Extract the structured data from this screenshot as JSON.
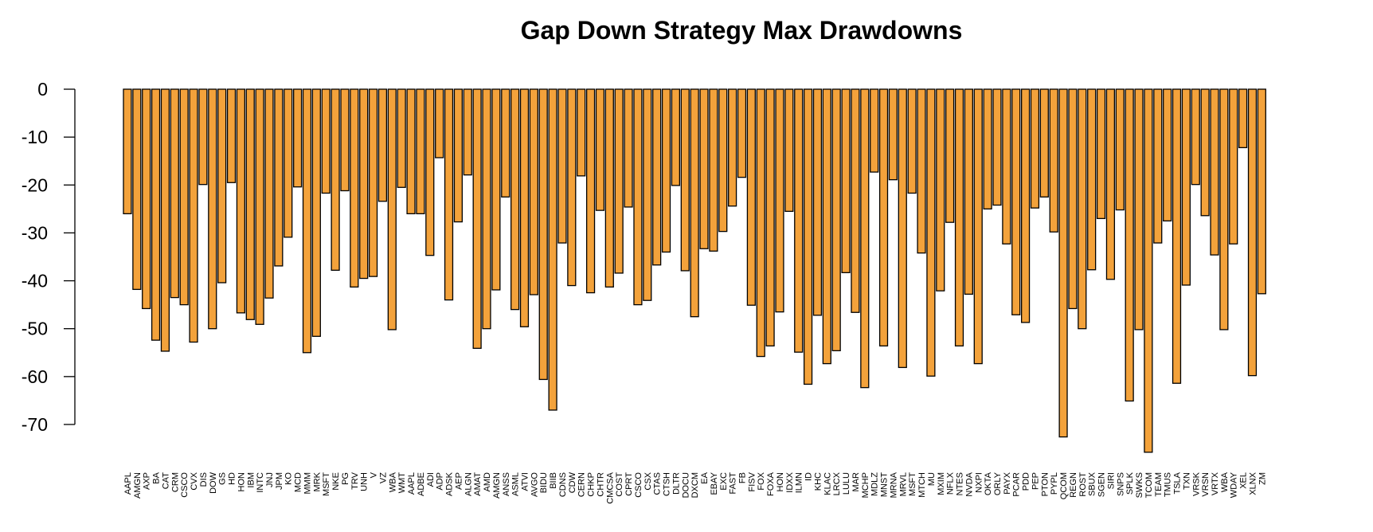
{
  "chart_data": {
    "type": "bar",
    "title": "Gap Down Strategy Max Drawdowns",
    "xlabel": "",
    "ylabel": "",
    "ylim": [
      -76,
      0
    ],
    "yticks": [
      0,
      -10,
      -20,
      -30,
      -40,
      -50,
      -60,
      -70
    ],
    "ytick_labels": [
      "0",
      "-10",
      "-20",
      "-30",
      "-40",
      "-50",
      "-60",
      "-70"
    ],
    "grid": false,
    "bar_color": "#f3a23b",
    "categories": [
      "AAPL",
      "AMGN",
      "AXP",
      "BA",
      "CAT",
      "CRM",
      "CSCO",
      "CVX",
      "DIS",
      "DOW",
      "GS",
      "HD",
      "HON",
      "IBM",
      "INTC",
      "JNJ",
      "JPM",
      "KO",
      "MCD",
      "MMM",
      "MRK",
      "MSFT",
      "NKE",
      "PG",
      "TRV",
      "UNH",
      "V",
      "VZ",
      "WBA",
      "WMT",
      "AAPL",
      "ADBE",
      "ADI",
      "ADP",
      "ADSK",
      "AEP",
      "ALGN",
      "AMAT",
      "AMD",
      "AMGN",
      "ANSS",
      "ASML",
      "ATVI",
      "AVGO",
      "BIDU",
      "BIIB",
      "CDNS",
      "CDW",
      "CERN",
      "CHKP",
      "CHTR",
      "CMCSA",
      "COST",
      "CPRT",
      "CSCO",
      "CSX",
      "CTAS",
      "CTSH",
      "DLTR",
      "DOCU",
      "DXCM",
      "EA",
      "EBAY",
      "EXC",
      "FAST",
      "FB",
      "FISV",
      "FOX",
      "FOXA",
      "HON",
      "IDXX",
      "ILMN",
      "ID",
      "KHC",
      "KLAC",
      "LRCX",
      "LULU",
      "MAR",
      "MCHP",
      "MDLZ",
      "MNST",
      "MRNA",
      "MRVL",
      "MSFT",
      "MTCH",
      "MU",
      "MXIM",
      "NFLX",
      "NTES",
      "NVDA",
      "NXPI",
      "OKTA",
      "ORLY",
      "PAYX",
      "PCAR",
      "PDD",
      "PEP",
      "PTON",
      "PYPL",
      "QCOM",
      "REGN",
      "ROST",
      "SBUX",
      "SGEN",
      "SIRI",
      "SNPS",
      "SPLK",
      "SWKS",
      "TCOM",
      "TEAM",
      "TMUS",
      "TSLA",
      "TXN",
      "VRSK",
      "VRSN",
      "VRTX",
      "WBA",
      "WDAY",
      "XEL",
      "XLNX",
      "ZM"
    ],
    "values": [
      -26,
      -41.8,
      -45.8,
      -52.4,
      -54.7,
      -43.5,
      -45,
      -52.8,
      -19.9,
      -50,
      -40.4,
      -19.5,
      -46.7,
      -48.1,
      -49.1,
      -43.6,
      -36.9,
      -30.9,
      -20.4,
      -55,
      -51.6,
      -21.7,
      -37.8,
      -21.2,
      -41.3,
      -39.5,
      -39.1,
      -23.4,
      -50.2,
      -20.5,
      -26,
      -26,
      -34.7,
      -14.3,
      -44,
      -27.7,
      -17.9,
      -54.1,
      -50,
      -41.9,
      -22.5,
      -46,
      -49.6,
      -42.9,
      -60.6,
      -67,
      -32.1,
      -41,
      -18.1,
      -42.5,
      -25.3,
      -41.3,
      -38.4,
      -24.6,
      -45,
      -44.1,
      -36.7,
      -34,
      -20.1,
      -37.9,
      -47.5,
      -33.3,
      -33.8,
      -29.7,
      -24.4,
      -18.4,
      -45.1,
      -55.8,
      -53.6,
      -46.5,
      -25.5,
      -54.9,
      -61.6,
      -47.2,
      -57.3,
      -54.6,
      -38.3,
      -46.6,
      -62.3,
      -17.3,
      -53.6,
      -18.9,
      -58.1,
      -21.7,
      -34.2,
      -59.9,
      -42.1,
      -27.8,
      -53.6,
      -42.8,
      -57.3,
      -25,
      -24.2,
      -32.3,
      -47.1,
      -48.7,
      -24.8,
      -22.5,
      -29.8,
      -72.6,
      -45.8,
      -50,
      -37.7,
      -27,
      -39.7,
      -25.2,
      -65.1,
      -50.2,
      -75.8,
      -32.1,
      -27.5,
      -61.4,
      -40.9,
      -19.9,
      -26.4,
      -34.6,
      -50.2,
      -32.3,
      -12.2,
      -59.8,
      -42.7
    ]
  }
}
